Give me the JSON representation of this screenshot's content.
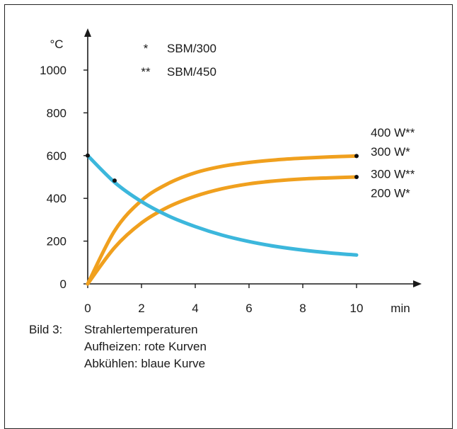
{
  "chart_data": {
    "type": "line",
    "xlabel": "min",
    "ylabel": "°C",
    "xlim": [
      0,
      10
    ],
    "ylim": [
      0,
      1100
    ],
    "x_ticks": [
      0,
      2,
      4,
      6,
      8,
      10
    ],
    "y_ticks": [
      0,
      200,
      400,
      600,
      800,
      1000
    ],
    "legend": [
      {
        "symbol": "*",
        "label": "SBM/300"
      },
      {
        "symbol": "**",
        "label": "SBM/450"
      }
    ],
    "series": [
      {
        "name": "400 W** / 300 W*",
        "color": "#f0a01e",
        "x": [
          0,
          1,
          2,
          3,
          4,
          5,
          6,
          7,
          8,
          9,
          10
        ],
        "y": [
          0,
          248,
          390,
          470,
          520,
          550,
          568,
          580,
          588,
          594,
          598
        ]
      },
      {
        "name": "300 W** / 200 W*",
        "color": "#f0a01e",
        "x": [
          0,
          1,
          2,
          3,
          4,
          5,
          6,
          7,
          8,
          9,
          10
        ],
        "y": [
          0,
          170,
          285,
          360,
          410,
          445,
          468,
          482,
          491,
          496,
          500
        ]
      },
      {
        "name": "cooling",
        "color": "#3cb7dc",
        "x": [
          0,
          1,
          2,
          3,
          4,
          5,
          6,
          7,
          8,
          9,
          10
        ],
        "y": [
          600,
          475,
          385,
          318,
          268,
          228,
          198,
          175,
          158,
          145,
          135
        ]
      }
    ],
    "markers": [
      {
        "x": 0,
        "y": 600
      },
      {
        "x": 1,
        "y": 483
      },
      {
        "x": 10,
        "y": 598
      },
      {
        "x": 10,
        "y": 500
      }
    ],
    "right_labels": [
      {
        "text": "400 W**",
        "y": 708
      },
      {
        "text": "300 W*",
        "y": 620
      },
      {
        "text": "300 W**",
        "y": 515
      },
      {
        "text": "200 W*",
        "y": 425
      }
    ]
  },
  "caption": {
    "number": "Bild 3:",
    "title": "Strahlertemperaturen",
    "line2": "Aufheizen: rote Kurven",
    "line3": "Abkühlen: blaue Kurve"
  },
  "colors": {
    "heating": "#f0a01e",
    "cooling": "#3cb7dc",
    "axis": "#1a1a1a"
  }
}
